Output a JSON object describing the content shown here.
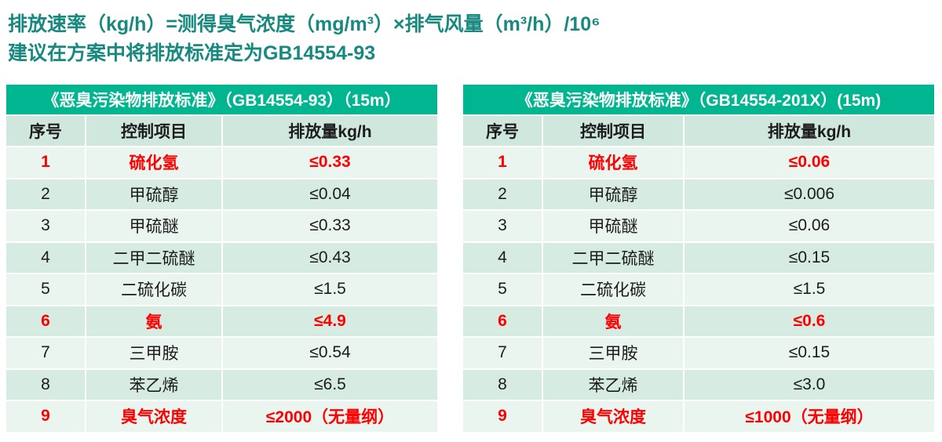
{
  "intro": {
    "line1": "排放速率（kg/h）=测得臭气浓度（mg/m³）×排气风量（m³/h）/10⁶",
    "line2": "建议在方案中将排放标准定为GB14554-93"
  },
  "colors": {
    "intro_text": "#17897f",
    "table_header_bg": "#00b690",
    "table_header_text": "#ffffff",
    "column_header_bg": "#cfe7dc",
    "row_odd_bg": "#ebf5f0",
    "row_even_bg": "#d6ebe1",
    "highlight_text": "#fe0000",
    "body_text": "#1c1c1c"
  },
  "tables": [
    {
      "title": "《恶臭污染物排放标准》（GB14554-93）（15m）",
      "columns": [
        "序号",
        "控制项目",
        "排放量kg/h"
      ],
      "rows": [
        {
          "no": "1",
          "item": "硫化氢",
          "value": "≤0.33",
          "highlight": true
        },
        {
          "no": "2",
          "item": "甲硫醇",
          "value": "≤0.04",
          "highlight": false
        },
        {
          "no": "3",
          "item": "甲硫醚",
          "value": "≤0.33",
          "highlight": false
        },
        {
          "no": "4",
          "item": "二甲二硫醚",
          "value": "≤0.43",
          "highlight": false
        },
        {
          "no": "5",
          "item": "二硫化碳",
          "value": "≤1.5",
          "highlight": false
        },
        {
          "no": "6",
          "item": "氨",
          "value": "≤4.9",
          "highlight": true
        },
        {
          "no": "7",
          "item": "三甲胺",
          "value": "≤0.54",
          "highlight": false
        },
        {
          "no": "8",
          "item": "苯乙烯",
          "value": "≤6.5",
          "highlight": false
        },
        {
          "no": "9",
          "item": "臭气浓度",
          "value": "≤2000（无量纲）",
          "highlight": true
        }
      ]
    },
    {
      "title": "《恶臭污染物排放标准》（GB14554-201X）(15m)",
      "columns": [
        "序号",
        "控制项目",
        "排放量kg/h"
      ],
      "rows": [
        {
          "no": "1",
          "item": "硫化氢",
          "value": "≤0.06",
          "highlight": true
        },
        {
          "no": "2",
          "item": "甲硫醇",
          "value": "≤0.006",
          "highlight": false
        },
        {
          "no": "3",
          "item": "甲硫醚",
          "value": "≤0.06",
          "highlight": false
        },
        {
          "no": "4",
          "item": "二甲二硫醚",
          "value": "≤0.15",
          "highlight": false
        },
        {
          "no": "5",
          "item": "二硫化碳",
          "value": "≤1.5",
          "highlight": false
        },
        {
          "no": "6",
          "item": "氨",
          "value": "≤0.6",
          "highlight": true
        },
        {
          "no": "7",
          "item": "三甲胺",
          "value": "≤0.15",
          "highlight": false
        },
        {
          "no": "8",
          "item": "苯乙烯",
          "value": "≤3.0",
          "highlight": false
        },
        {
          "no": "9",
          "item": "臭气浓度",
          "value": "≤1000（无量纲）",
          "highlight": true
        }
      ]
    }
  ]
}
